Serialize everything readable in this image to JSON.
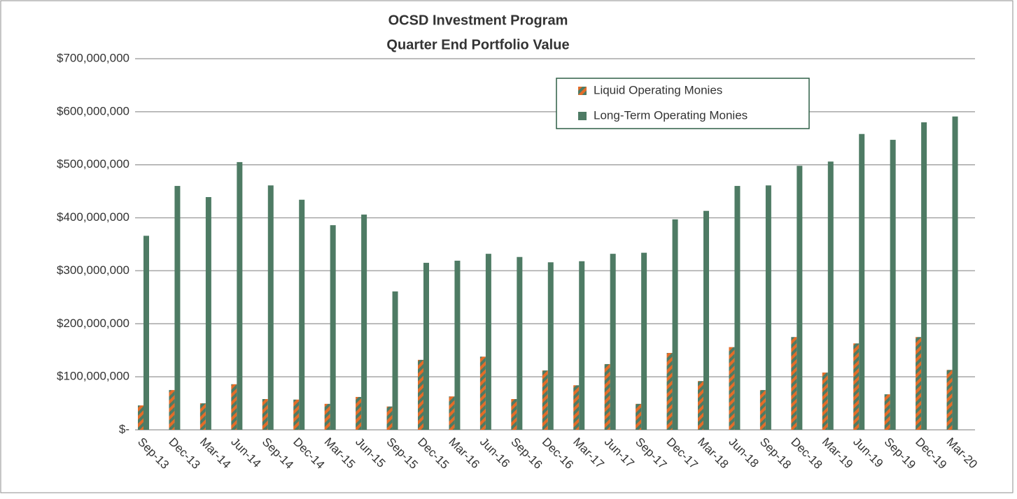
{
  "chart_data": {
    "type": "bar",
    "title": "OCSD Investment Program",
    "subtitle": "Quarter End Portfolio Value",
    "categories": [
      "Sep-13",
      "Dec-13",
      "Mar-14",
      "Jun-14",
      "Sep-14",
      "Dec-14",
      "Mar-15",
      "Jun-15",
      "Sep-15",
      "Dec-15",
      "Mar-16",
      "Jun-16",
      "Sep-16",
      "Dec-16",
      "Mar-17",
      "Jun-17",
      "Sep-17",
      "Dec-17",
      "Mar-18",
      "Jun-18",
      "Sep-18",
      "Dec-18",
      "Mar-19",
      "Jun-19",
      "Sep-19",
      "Dec-19",
      "Mar-20"
    ],
    "series": [
      {
        "name": "Liquid Operating Monies",
        "color": "#e46c28",
        "values": [
          46000000,
          75000000,
          50000000,
          86000000,
          58000000,
          57000000,
          49000000,
          62000000,
          44000000,
          132000000,
          63000000,
          138000000,
          58000000,
          112000000,
          84000000,
          124000000,
          49000000,
          145000000,
          92000000,
          156000000,
          75000000,
          175000000,
          108000000,
          163000000,
          67000000,
          175000000,
          113000000
        ]
      },
      {
        "name": "Long-Term Operating Monies",
        "color": "#4e7b64",
        "values": [
          366000000,
          460000000,
          439000000,
          505000000,
          461000000,
          434000000,
          386000000,
          406000000,
          261000000,
          315000000,
          319000000,
          332000000,
          326000000,
          316000000,
          318000000,
          332000000,
          334000000,
          397000000,
          413000000,
          460000000,
          461000000,
          498000000,
          506000000,
          558000000,
          547000000,
          580000000,
          591000000
        ]
      }
    ],
    "ylim": [
      0,
      700000000
    ],
    "yticks": [
      {
        "value": 0,
        "label": "$-"
      },
      {
        "value": 100000000,
        "label": "$100,000,000"
      },
      {
        "value": 200000000,
        "label": "$200,000,000"
      },
      {
        "value": 300000000,
        "label": "$300,000,000"
      },
      {
        "value": 400000000,
        "label": "$400,000,000"
      },
      {
        "value": 500000000,
        "label": "$500,000,000"
      },
      {
        "value": 600000000,
        "label": "$600,000,000"
      },
      {
        "value": 700000000,
        "label": "$700,000,000"
      }
    ],
    "grid": true
  }
}
